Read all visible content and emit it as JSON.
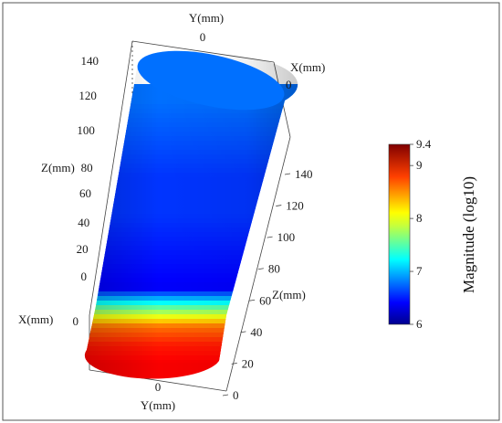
{
  "chart_data": {
    "type": "heatmap",
    "title": "",
    "axes": {
      "y_top": {
        "label": "Y(mm)",
        "ticks": [
          "0"
        ]
      },
      "x_right": {
        "label": "X(mm)",
        "ticks": [
          "0"
        ]
      },
      "z_left": {
        "label": "Z(mm)",
        "ticks": [
          "140",
          "120",
          "100",
          "80",
          "60",
          "40",
          "20",
          "0"
        ]
      },
      "x_left": {
        "label": "X(mm)",
        "ticks": [
          "0"
        ]
      },
      "z_right": {
        "label": "Z(mm)",
        "ticks": [
          "140",
          "120",
          "100",
          "80",
          "60",
          "40",
          "20",
          "0"
        ]
      },
      "y_bottom": {
        "label": "Y(mm)",
        "ticks": [
          "0"
        ]
      }
    },
    "colorbar": {
      "title": "Magnitude (log10)",
      "min": 6,
      "max": 9.4,
      "ticks": [
        "9.4",
        "9",
        "8",
        "7",
        "6"
      ],
      "colormap": "jet"
    },
    "profile_along_z": {
      "z_mm": [
        0,
        10,
        20,
        30,
        40,
        60,
        80,
        100,
        120,
        140
      ],
      "magnitude_log10": [
        9.0,
        8.9,
        8.6,
        7.6,
        6.4,
        6.5,
        6.6,
        6.6,
        6.7,
        6.8
      ]
    }
  }
}
